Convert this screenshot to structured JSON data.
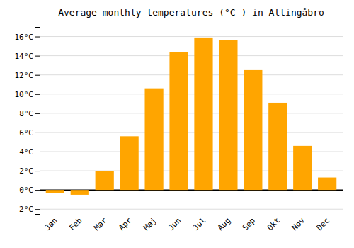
{
  "chart_data": {
    "type": "bar",
    "title": "Average monthly temperatures (°C ) in Allingåbro",
    "categories": [
      "Jan",
      "Feb",
      "Mar",
      "Apr",
      "Maj",
      "Jun",
      "Jul",
      "Aug",
      "Sep",
      "Okt",
      "Nov",
      "Dec"
    ],
    "values": [
      -0.3,
      -0.5,
      2.0,
      5.6,
      10.6,
      14.4,
      15.9,
      15.6,
      12.5,
      9.1,
      4.6,
      1.3
    ],
    "color": "#FFA500",
    "ylim": [
      -2.5,
      17
    ],
    "yticks": [
      {
        "value": -2,
        "label": "-2°C"
      },
      {
        "value": 0,
        "label": "0°C"
      },
      {
        "value": 2,
        "label": "2°C"
      },
      {
        "value": 4,
        "label": "4°C"
      },
      {
        "value": 6,
        "label": "6°C"
      },
      {
        "value": 8,
        "label": "8°C"
      },
      {
        "value": 10,
        "label": "10°C"
      },
      {
        "value": 12,
        "label": "12°C"
      },
      {
        "value": 14,
        "label": "14°C"
      },
      {
        "value": 16,
        "label": "16°C"
      }
    ],
    "grid": true
  }
}
